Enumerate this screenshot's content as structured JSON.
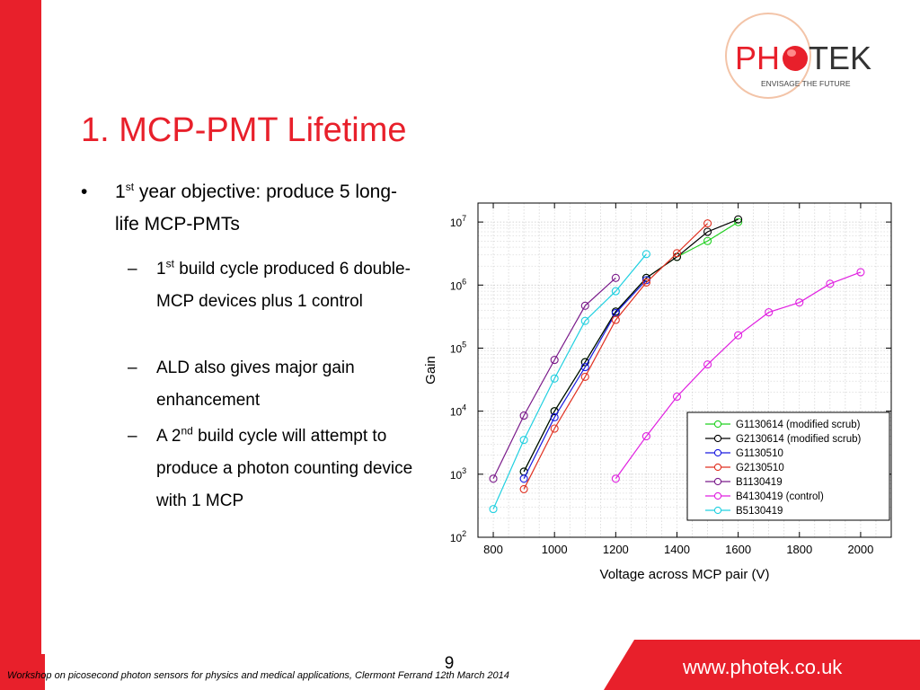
{
  "slide": {
    "title": "1. MCP-PMT Lifetime",
    "logo": {
      "brand": "PHOTEK",
      "brand_left": "PH",
      "brand_right": "TEK",
      "tagline": "ENVISAGE THE FUTURE"
    },
    "bullets": [
      {
        "marker": "•",
        "text_before": "1",
        "sup": "st",
        "text_after": " year objective: produce 5 long-life MCP-PMTs"
      }
    ],
    "subbullets": [
      {
        "marker": "–",
        "text_before": "1",
        "sup": "st",
        "text_after": " build cycle produced 6 double-MCP devices plus 1 control"
      },
      {
        "marker": "–",
        "text_before": "ALD also gives major gain enhancement",
        "sup": "",
        "text_after": ""
      },
      {
        "marker": "–",
        "text_before": "A 2",
        "sup": "nd",
        "text_after": " build cycle will attempt to produce a photon counting device with 1 MCP"
      }
    ],
    "page_number": "9",
    "footer_text": "Workshop on picosecond photon sensors for physics and medical applications, Clermont Ferrand 12th March 2014",
    "footer_url": "www.photek.co.uk",
    "colors": {
      "accent": "#e8202b",
      "white": "#ffffff"
    }
  },
  "chart_data": {
    "type": "line",
    "title": "",
    "xlabel": "Voltage across MCP pair (V)",
    "ylabel": "Gain",
    "xlim": [
      750,
      2100
    ],
    "ylim": [
      100,
      20000000
    ],
    "ylog": true,
    "grid": true,
    "legend_position": "lower-right",
    "x_ticks": [
      "800",
      "1000",
      "1200",
      "1400",
      "1600",
      "1800",
      "2000"
    ],
    "y_ticks": [
      {
        "base": "10",
        "exp": "2"
      },
      {
        "base": "10",
        "exp": "3"
      },
      {
        "base": "10",
        "exp": "4"
      },
      {
        "base": "10",
        "exp": "5"
      },
      {
        "base": "10",
        "exp": "6"
      },
      {
        "base": "10",
        "exp": "7"
      }
    ],
    "series": [
      {
        "name": "G1130614 (modified scrub)",
        "color": "#20d020",
        "x": [
          900,
          1000,
          1100,
          1200,
          1300,
          1400,
          1500,
          1600
        ],
        "y": [
          1100,
          10000,
          60000,
          380000,
          1300000,
          2800000,
          5000000,
          10000000
        ]
      },
      {
        "name": "G2130614 (modified scrub)",
        "color": "#000000",
        "x": [
          900,
          1000,
          1100,
          1200,
          1300,
          1400,
          1500,
          1600
        ],
        "y": [
          1100,
          10000,
          60000,
          380000,
          1300000,
          2800000,
          7000000,
          11000000
        ]
      },
      {
        "name": "G1130510",
        "color": "#1a1ae0",
        "x": [
          900,
          1000,
          1100,
          1200,
          1300
        ],
        "y": [
          850,
          8000,
          50000,
          360000,
          1200000
        ]
      },
      {
        "name": "G2130510",
        "color": "#e03020",
        "x": [
          900,
          1000,
          1100,
          1200,
          1300,
          1400,
          1500
        ],
        "y": [
          580,
          5300,
          35000,
          280000,
          1100000,
          3200000,
          9500000
        ]
      },
      {
        "name": "B1130419",
        "color": "#7a1a8a",
        "x": [
          800,
          900,
          1000,
          1100,
          1200
        ],
        "y": [
          850,
          8500,
          65000,
          470000,
          1300000
        ]
      },
      {
        "name": "B4130419 (control)",
        "color": "#e020e0",
        "x": [
          1200,
          1300,
          1400,
          1500,
          1600,
          1700,
          1800,
          1900,
          2000
        ],
        "y": [
          850,
          4000,
          17000,
          55000,
          160000,
          370000,
          530000,
          1050000,
          1600000
        ]
      },
      {
        "name": "B5130419",
        "color": "#20d0e0",
        "x": [
          800,
          900,
          1000,
          1100,
          1200,
          1300
        ],
        "y": [
          280,
          3500,
          33000,
          270000,
          800000,
          3100000
        ]
      }
    ]
  }
}
